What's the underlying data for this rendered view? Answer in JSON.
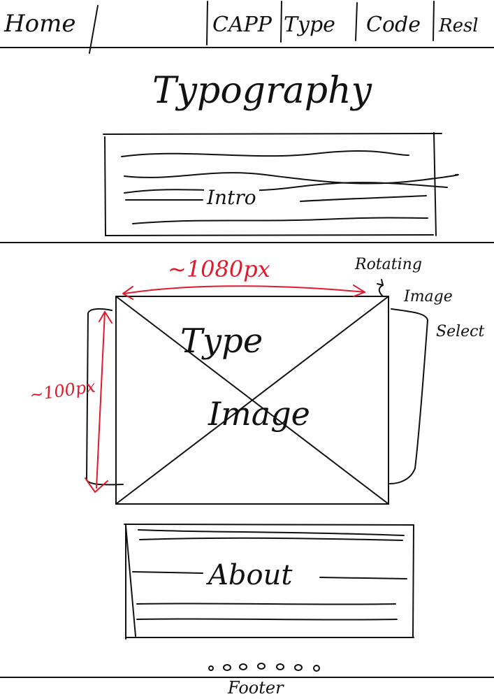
{
  "nav": {
    "home": "Home",
    "items": [
      "CAPP",
      "Type",
      "Code",
      "Resl"
    ]
  },
  "page_title": "Typography",
  "intro_label": "Intro",
  "hero": {
    "line1": "Type",
    "line2": "Image",
    "width_note": "~1080px",
    "height_note": "~100px",
    "carousel_note": [
      "Rotating",
      "Image",
      "Select"
    ]
  },
  "about_label": "About",
  "pager_dots": 7,
  "footer_label": "Footer",
  "colors": {
    "ink": "#111111",
    "annotation": "#e01b2d"
  }
}
